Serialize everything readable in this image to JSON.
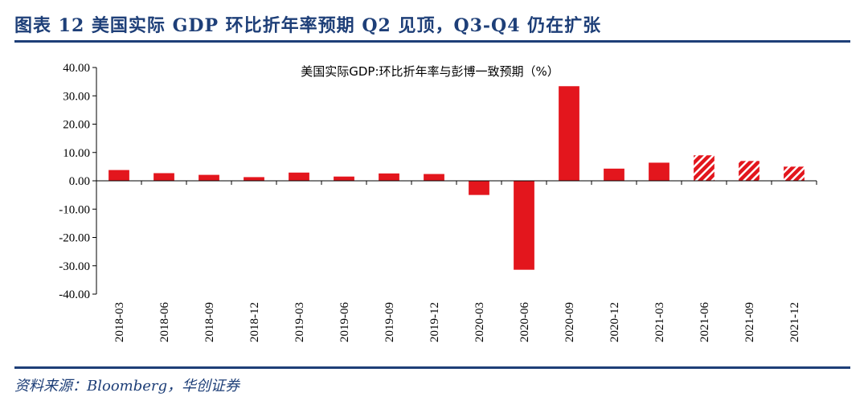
{
  "figure": {
    "title": "图表 12   美国实际 GDP 环比折年率预期 Q2 见顶，Q3-Q4 仍在扩张",
    "source": "资料来源：Bloomberg，华创证券"
  },
  "colors": {
    "bar": "#e3161d",
    "hatch_stripe": "#ffffff",
    "axis": "#000000",
    "header_accent": "#1e3f78"
  },
  "chart_data": {
    "type": "bar",
    "title": "美国实际GDP:环比折年率与彭博一致预期（%）",
    "categories": [
      "2018-03",
      "2018-06",
      "2018-09",
      "2018-12",
      "2019-03",
      "2019-06",
      "2019-09",
      "2019-12",
      "2020-03",
      "2020-06",
      "2020-09",
      "2020-12",
      "2021-03",
      "2021-06",
      "2021-09",
      "2021-12"
    ],
    "values": [
      3.8,
      2.7,
      2.1,
      1.3,
      2.9,
      1.5,
      2.6,
      2.4,
      -5.0,
      -31.4,
      33.4,
      4.3,
      6.4,
      9.0,
      7.0,
      5.0
    ],
    "forecast": [
      false,
      false,
      false,
      false,
      false,
      false,
      false,
      false,
      false,
      false,
      false,
      false,
      false,
      true,
      true,
      true
    ],
    "ylim": [
      -40,
      40
    ],
    "yticks": [
      "40.00",
      "30.00",
      "20.00",
      "10.00",
      "0.00",
      "-10.00",
      "-20.00",
      "-30.00",
      "-40.00"
    ],
    "ytick_values": [
      40,
      30,
      20,
      10,
      0,
      -10,
      -20,
      -30,
      -40
    ],
    "grid": false,
    "legend": "none"
  }
}
